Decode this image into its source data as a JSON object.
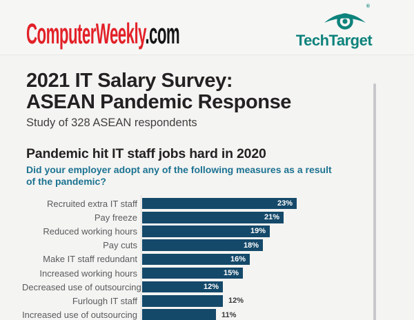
{
  "header": {
    "computerweekly_logo": {
      "main": "ComputerWeekly",
      "suffix": ".com",
      "main_color": "#e22128",
      "suffix_color": "#151515"
    },
    "techtarget_logo": {
      "text": "TechTarget",
      "registered_mark": "®",
      "color": "#0d837c",
      "icon": "techtarget-eye-icon"
    }
  },
  "title": {
    "line1": "2021 IT Salary Survey:",
    "line2": "ASEAN Pandemic Response",
    "subtitle": "Study of 328 ASEAN respondents"
  },
  "section": {
    "heading": "Pandemic hit IT staff jobs hard in 2020",
    "question": "Did your employer adopt any of the following measures as a result of the pandemic?",
    "question_color": "#1b7291"
  },
  "chart_data": {
    "type": "bar",
    "orientation": "horizontal",
    "categories": [
      "Recruited extra IT staff",
      "Pay freeze",
      "Reduced working hours",
      "Pay cuts",
      "Make IT staff redundant",
      "Increased working hours",
      "Decreased use of outsourcing",
      "Furlough IT staff",
      "Increased use of outsourcing"
    ],
    "values": [
      23,
      21,
      19,
      18,
      16,
      15,
      12,
      12,
      11
    ],
    "value_labels": [
      "23%",
      "21%",
      "19%",
      "18%",
      "16%",
      "15%",
      "12%",
      "12%",
      "11%"
    ],
    "value_label_position": [
      "inside",
      "inside",
      "inside",
      "inside",
      "inside",
      "inside",
      "inside",
      "outside",
      "outside"
    ],
    "xlim": [
      0,
      23
    ],
    "grid": false,
    "bar_color": "#14496a",
    "label_color": "#595a5c",
    "value_inside_color": "#ffffff",
    "value_outside_color": "#3a3a3c"
  }
}
